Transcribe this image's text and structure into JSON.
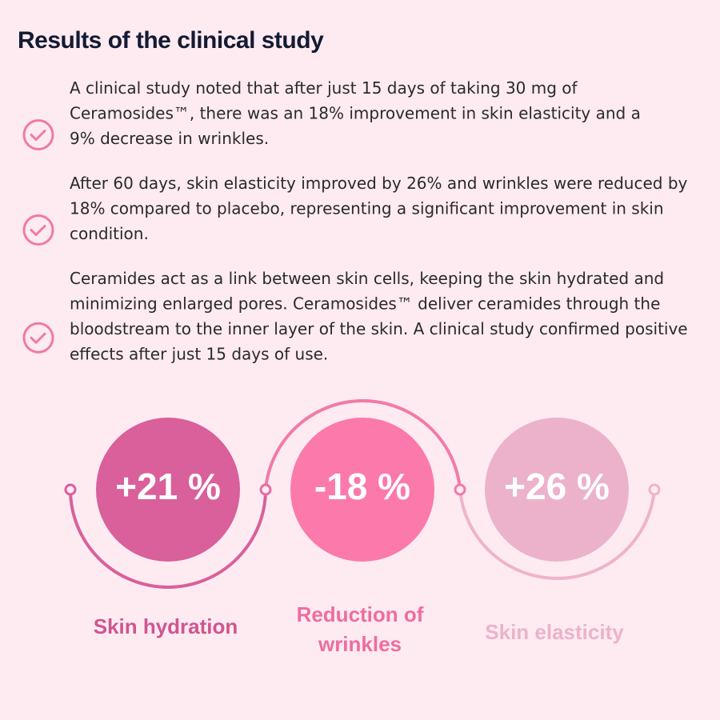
{
  "header": {
    "title": "Results of the clinical study"
  },
  "bullets": [
    {
      "lines": [
        "A clinical study noted that after just 15 days of taking 30 mg of",
        "Ceramosides™, there was an 18% improvement in skin elasticity and a",
        "9% decrease in wrinkles."
      ]
    },
    {
      "lines": [
        "After 60 days, skin elasticity improved by 26% and wrinkles were reduced by",
        "18% compared to placebo, representing a significant improvement in skin",
        "condition."
      ]
    },
    {
      "lines": [
        "Ceramides act as a link between skin cells, keeping the skin hydrated and",
        "minimizing enlarged pores. Ceramosides™ deliver ceramides through the",
        "bloodstream to the inner layer of the skin. A clinical study confirmed positive",
        "effects after just 15 days of use."
      ]
    }
  ],
  "stats": [
    {
      "value": "+21 %",
      "label_lines": [
        "Skin hydration"
      ]
    },
    {
      "value": "-18 %",
      "label_lines": [
        "Reduction of",
        "wrinkles"
      ]
    },
    {
      "value": "+26 %",
      "label_lines": [
        "Skin elasticity"
      ]
    }
  ]
}
